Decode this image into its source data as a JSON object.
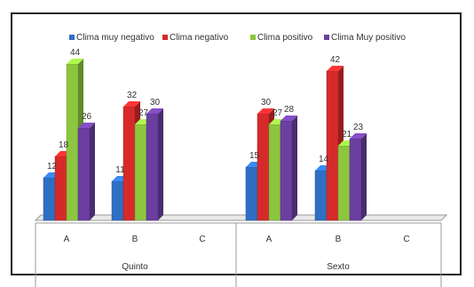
{
  "chart_data": {
    "type": "bar",
    "variant": "3d-clustered",
    "groups": [
      "Quinto",
      "Sexto"
    ],
    "categories": [
      "A",
      "B",
      "C"
    ],
    "series": [
      {
        "name": "Clima muy negativo",
        "color": "#2E6FC4",
        "values": [
          [
            12,
            11,
            null
          ],
          [
            15,
            14,
            null
          ]
        ]
      },
      {
        "name": "Clima negativo",
        "color": "#D62A2A",
        "values": [
          [
            18,
            32,
            null
          ],
          [
            30,
            42,
            null
          ]
        ]
      },
      {
        "name": "Clima positivo",
        "color": "#8CC63F",
        "values": [
          [
            44,
            27,
            null
          ],
          [
            27,
            21,
            null
          ]
        ]
      },
      {
        "name": "Clima Muy positivo",
        "color": "#6A3FA0",
        "values": [
          [
            26,
            30,
            null
          ],
          [
            28,
            23,
            null
          ]
        ]
      }
    ],
    "data_labels": [
      [
        "12",
        "18",
        "44",
        "26",
        "11",
        "32",
        "27",
        "30"
      ],
      [
        "15",
        "30",
        "27",
        "28",
        "14",
        "42",
        "21",
        "23"
      ]
    ],
    "ylim": [
      0,
      50
    ],
    "legend_position": "top",
    "grid": false
  }
}
